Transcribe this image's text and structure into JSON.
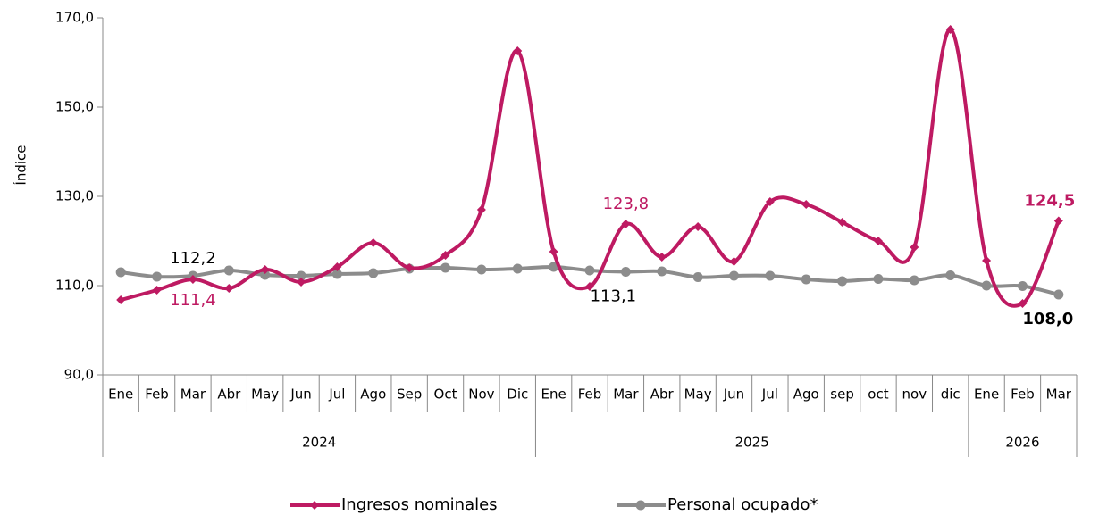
{
  "chart_data": {
    "type": "line",
    "y_label": "Índice",
    "categories": [
      "Ene",
      "Feb",
      "Mar",
      "Abr",
      "May",
      "Jun",
      "Jul",
      "Ago",
      "Sep",
      "Oct",
      "Nov",
      "Dic",
      "Ene",
      "Feb",
      "Mar",
      "Abr",
      "May",
      "Jun",
      "Jul",
      "Ago",
      "sep",
      "oct",
      "nov",
      "dic",
      "Ene",
      "Feb",
      "Mar"
    ],
    "year_groups": [
      {
        "label": "2024",
        "count": 12
      },
      {
        "label": "2025",
        "count": 12
      },
      {
        "label": "2026",
        "count": 3
      }
    ],
    "series": [
      {
        "name": "Ingresos nominales",
        "color": "#be1a62",
        "marker": "diamond",
        "values": [
          106.8,
          109.0,
          111.4,
          109.4,
          113.6,
          110.8,
          114.2,
          119.6,
          114.0,
          116.8,
          127.0,
          162.6,
          117.6,
          109.8,
          123.8,
          116.4,
          123.2,
          115.4,
          128.8,
          128.2,
          124.2,
          120.0,
          118.6,
          167.4,
          115.6,
          106.0,
          124.5
        ],
        "value_labels": [
          null,
          null,
          "111,4",
          null,
          null,
          null,
          null,
          null,
          null,
          null,
          null,
          null,
          null,
          null,
          "123,8",
          null,
          null,
          null,
          null,
          null,
          null,
          null,
          null,
          null,
          null,
          null,
          "124,5"
        ]
      },
      {
        "name": "Personal ocupado*",
        "color": "#8c8c8c",
        "marker": "circle",
        "values": [
          113.0,
          112.0,
          112.2,
          113.4,
          112.4,
          112.2,
          112.6,
          112.8,
          113.8,
          114.0,
          113.6,
          113.8,
          114.2,
          113.4,
          113.1,
          113.2,
          111.9,
          112.2,
          112.2,
          111.4,
          111.0,
          111.5,
          111.2,
          112.3,
          110.0,
          109.9,
          108.0
        ],
        "value_labels": [
          null,
          null,
          "112,2",
          null,
          null,
          null,
          null,
          null,
          null,
          null,
          null,
          null,
          null,
          null,
          "113,1",
          null,
          null,
          null,
          null,
          null,
          null,
          null,
          null,
          null,
          null,
          null,
          "108,0"
        ]
      }
    ],
    "ylim": [
      90,
      170
    ],
    "yticks": [
      {
        "value": 90,
        "label": "90,0"
      },
      {
        "value": 110,
        "label": "110,0"
      },
      {
        "value": 130,
        "label": "130,0"
      },
      {
        "value": 150,
        "label": "150,0"
      },
      {
        "value": 170,
        "label": "170,0"
      }
    ],
    "grid": false,
    "legend": "bottom"
  }
}
